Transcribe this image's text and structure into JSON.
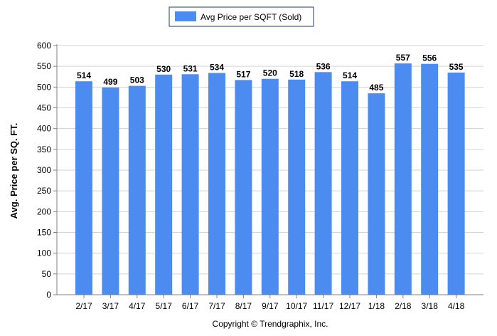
{
  "chart_data": {
    "type": "bar",
    "categories": [
      "2/17",
      "3/17",
      "4/17",
      "5/17",
      "6/17",
      "7/17",
      "8/17",
      "9/17",
      "10/17",
      "11/17",
      "12/17",
      "1/18",
      "2/18",
      "3/18",
      "4/18"
    ],
    "series": [
      {
        "name": "Avg Price per SQFT (Sold)",
        "values": [
          514,
          499,
          503,
          530,
          531,
          534,
          517,
          520,
          518,
          536,
          514,
          485,
          557,
          556,
          535
        ],
        "color": "#4c8bf0"
      }
    ],
    "data_labels": [
      "514",
      "499",
      "503",
      "530",
      "531",
      "534",
      "517",
      "520",
      "518",
      "536",
      "514",
      "485",
      "557",
      "556",
      "535"
    ],
    "ylabel": "Avg. Price per SQ. FT.",
    "xlabel": "",
    "ylim": [
      0,
      600
    ],
    "yticks": [
      "0",
      "50",
      "100",
      "150",
      "200",
      "250",
      "300",
      "350",
      "400",
      "450",
      "500",
      "550",
      "600"
    ],
    "grid": true,
    "legend": "top-center",
    "footer": "Copyright © Trendgraphix, Inc."
  }
}
